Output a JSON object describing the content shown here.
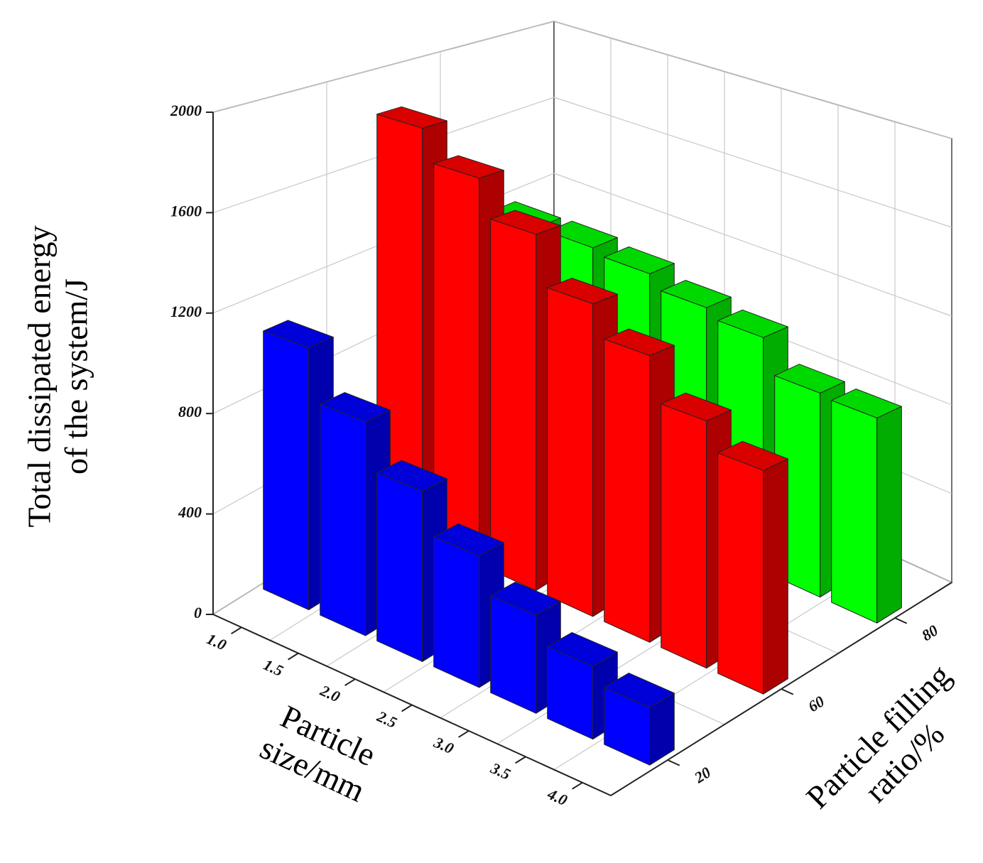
{
  "chart_data": {
    "type": "bar3d",
    "xlabel": [
      "Particle",
      "size/mm"
    ],
    "ylabel": [
      "Total dissipated energy",
      "of the system/J"
    ],
    "zlabel": [
      "Particle filling",
      "ratio/%"
    ],
    "categories": [
      "1.0",
      "1.5",
      "2.0",
      "2.5",
      "3.0",
      "3.5",
      "4.0"
    ],
    "ylim": [
      0,
      2000
    ],
    "yticks": [
      0,
      400,
      800,
      1200,
      1600,
      2000
    ],
    "grid": true,
    "series": [
      {
        "name": "20",
        "color": "#0000ff",
        "values": [
          1060,
          850,
          665,
          505,
          370,
          270,
          210
        ]
      },
      {
        "name": "60",
        "color": "#ff0000",
        "values": [
          1810,
          1670,
          1510,
          1300,
          1170,
          990,
          880
        ]
      },
      {
        "name": "80",
        "color": "#00ff00",
        "values": [
          1160,
          1165,
          1140,
          1080,
          1040,
          890,
          877
        ]
      }
    ]
  }
}
